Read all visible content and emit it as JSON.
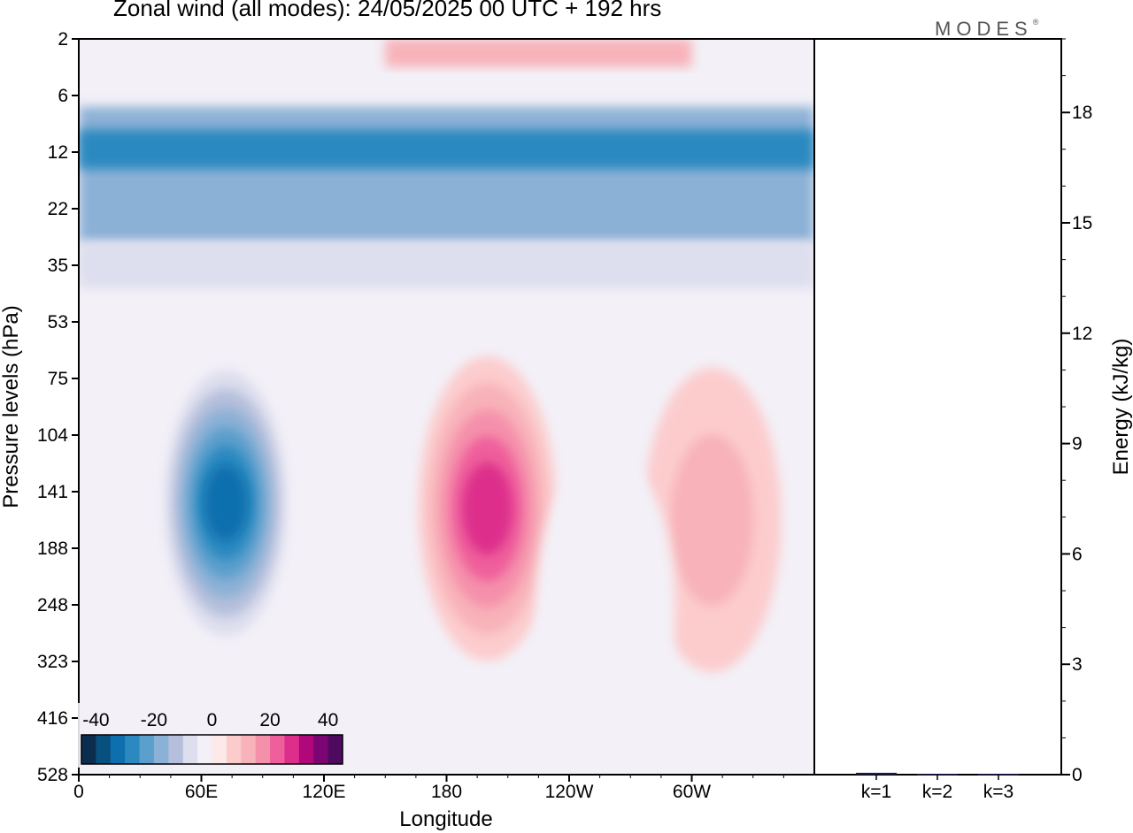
{
  "title": "Zonal wind (all modes):  24/05/2025  00 UTC  + 192 hrs",
  "logo": "MODES",
  "chart_data": [
    {
      "type": "heatmap",
      "title": "Zonal wind (all modes):  24/05/2025  00 UTC  + 192 hrs",
      "xlabel": "Longitude",
      "ylabel": "Pressure levels (hPa)",
      "x_ticks": [
        "0",
        "60E",
        "120E",
        "180",
        "120W",
        "60W"
      ],
      "y_ticks": [
        "2",
        "6",
        "12",
        "22",
        "35",
        "53",
        "75",
        "104",
        "141",
        "188",
        "248",
        "323",
        "416",
        "528"
      ],
      "colorbar": {
        "tick_labels": [
          "-40",
          "-20",
          "0",
          "20",
          "40"
        ],
        "range": [
          -45,
          45
        ],
        "step": 5,
        "colors": [
          "#0b2e4f",
          "#08507e",
          "#0d6fae",
          "#2c89c0",
          "#5b9fcc",
          "#8cb1d6",
          "#b5bfdb",
          "#dddeee",
          "#f3f0f7",
          "#fde9e9",
          "#fccccd",
          "#f8b2b9",
          "#f590ab",
          "#ef5f9b",
          "#dd2e8c",
          "#b0087a",
          "#7b0673",
          "#4d0a5f"
        ]
      },
      "features": [
        {
          "kind": "band",
          "lon_from": 0,
          "lon_to": 360,
          "level_index": [
            1.2,
            3.6
          ],
          "value": -20
        },
        {
          "kind": "band",
          "lon_from": 0,
          "lon_to": 360,
          "level_index": [
            1.6,
            2.3
          ],
          "value": -30
        },
        {
          "kind": "band",
          "lon_from": 0,
          "lon_to": 360,
          "level_index": [
            3.6,
            4.4
          ],
          "value": -10
        },
        {
          "kind": "band",
          "lon_from": 150,
          "lon_to": 300,
          "level_index": [
            0.0,
            0.5
          ],
          "value": 10
        },
        {
          "kind": "blob",
          "lon": 72,
          "level_index": 8.2,
          "value": -35
        },
        {
          "kind": "blob",
          "lon": 200,
          "level_index": 8.3,
          "value": 25
        },
        {
          "kind": "blob",
          "lon": 310,
          "level_index": 8.5,
          "value": 10
        },
        {
          "kind": "blob",
          "lon": 258,
          "level_index": 10.0,
          "value": -5
        }
      ]
    },
    {
      "type": "bar",
      "categories": [
        "k=1",
        "k=2",
        "k=3"
      ],
      "values": [
        0.05,
        0.02,
        0.02
      ],
      "ylabel": "Energy (kJ/kg)",
      "ylim": [
        0,
        20
      ],
      "y_ticks": [
        "0",
        "3",
        "6",
        "9",
        "12",
        "15",
        "18"
      ]
    }
  ]
}
